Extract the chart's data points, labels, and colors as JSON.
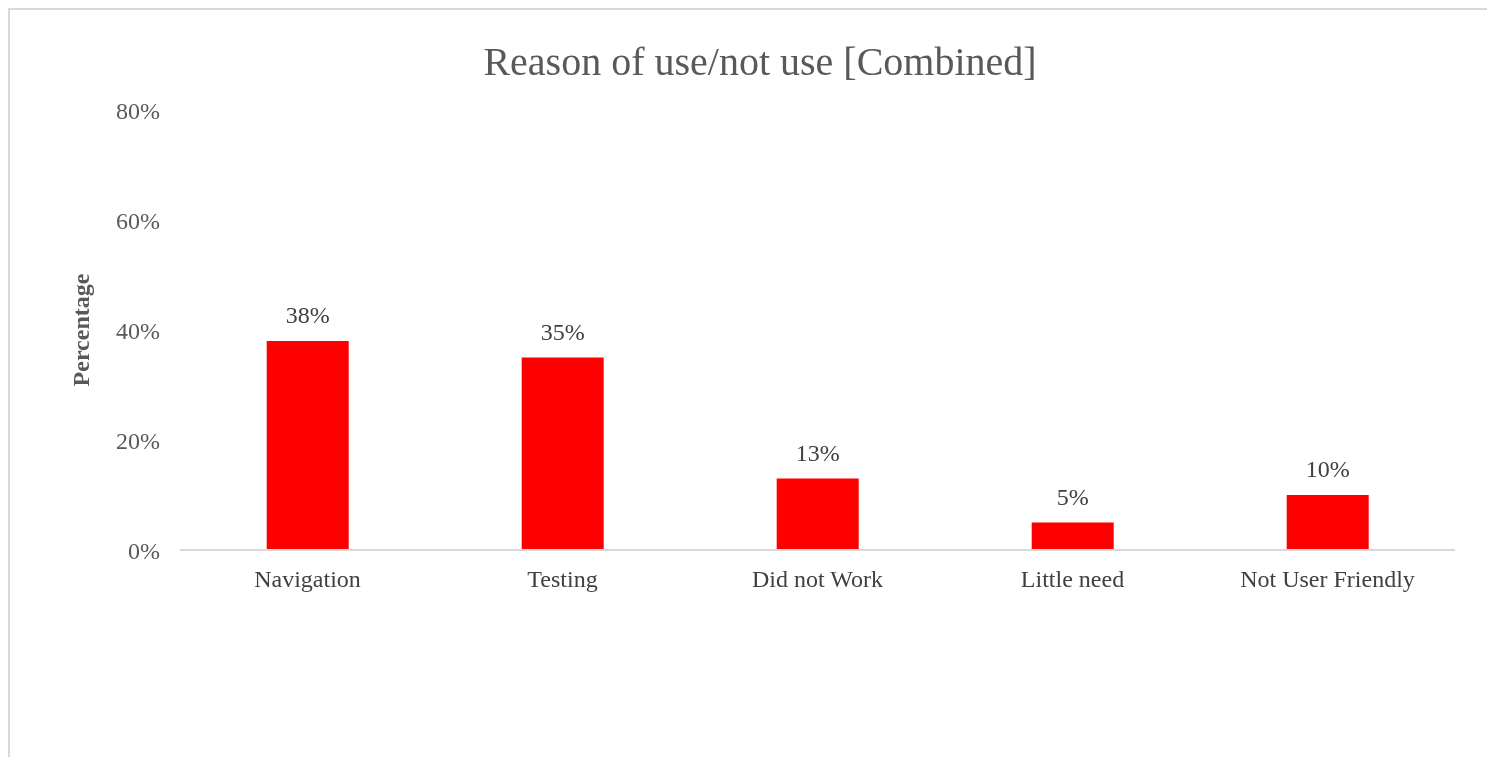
{
  "chart_data": {
    "type": "bar",
    "title": "Reason of use/not use [Combined]",
    "ylabel": "Percentage",
    "categories": [
      "Navigation",
      "Testing",
      "Did not Work",
      "Little need",
      "Not User Friendly"
    ],
    "values": [
      38,
      35,
      13,
      5,
      10
    ],
    "value_labels": [
      "38%",
      "35%",
      "13%",
      "5%",
      "10%"
    ],
    "color": "#ff0000",
    "ylim": [
      0,
      80
    ],
    "yticks": [
      {
        "value": 0,
        "label": "0%"
      },
      {
        "value": 20,
        "label": "20%"
      },
      {
        "value": 40,
        "label": "40%"
      },
      {
        "value": 60,
        "label": "60%"
      },
      {
        "value": 80,
        "label": "80%"
      }
    ],
    "grid": false,
    "legend": false
  }
}
